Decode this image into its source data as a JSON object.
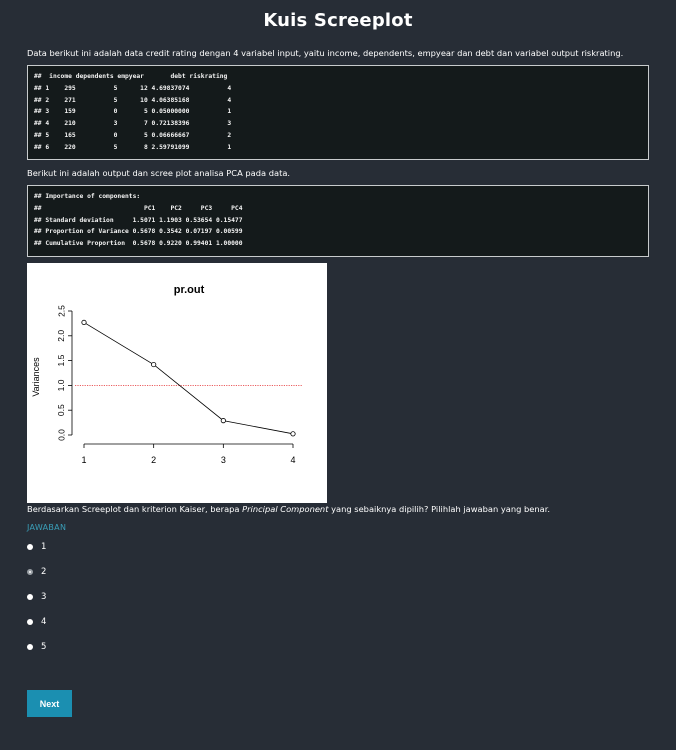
{
  "page": {
    "title": "Kuis Screeplot",
    "intro_text": "Data berikut ini adalah data credit rating dengan 4 variabel input, yaitu income, dependents, empyear dan debt dan variabel output riskrating.",
    "data_code_lines": [
      "##  income dependents empyear       debt riskrating",
      "## 1    295          5      12 4.69837074          4",
      "## 2    271          5      10 4.06385168          4",
      "## 3    159          0       5 0.05000000          1",
      "## 4    210          3       7 0.72138396          3",
      "## 5    165          0       5 0.06666667          2",
      "## 6    220          5       8 2.59791099          1"
    ],
    "pca_intro_text": "Berikut ini adalah output dan scree plot analisa PCA pada data.",
    "pca_code_lines": [
      "## Importance of components:",
      "##                           PC1    PC2     PC3     PC4",
      "## Standard deviation     1.5071 1.1903 0.53654 0.15477",
      "## Proportion of Variance 0.5678 0.3542 0.07197 0.00599",
      "## Cumulative Proportion  0.5678 0.9220 0.99401 1.00000"
    ],
    "question_prefix": "Berdasarkan Screeplot dan kriterion Kaiser, berapa ",
    "question_emphasis": "Principal Component",
    "question_suffix": " yang sebaiknya dipilih? Pilihlah jawaban yang benar.",
    "answer_label": "JAWABAN",
    "options": [
      {
        "label": "1",
        "selected": false
      },
      {
        "label": "2",
        "selected": true
      },
      {
        "label": "3",
        "selected": false
      },
      {
        "label": "4",
        "selected": false
      },
      {
        "label": "5",
        "selected": false
      }
    ],
    "next_label": "Next"
  },
  "chart_data": {
    "type": "line",
    "title": "pr.out",
    "ylabel": "Variances",
    "xlabel": "",
    "x": [
      1,
      2,
      3,
      4
    ],
    "values": [
      2.27,
      1.42,
      0.29,
      0.024
    ],
    "ylim": [
      0,
      2.5
    ],
    "xticks": [
      "1",
      "2",
      "3",
      "4"
    ],
    "yticks": [
      "0.0",
      "0.5",
      "1.0",
      "1.5",
      "2.0",
      "2.5"
    ],
    "reference_line": {
      "y": 1.0,
      "style": "dotted",
      "color": "#e8484a"
    },
    "line_color": "#000000",
    "grid": false
  }
}
